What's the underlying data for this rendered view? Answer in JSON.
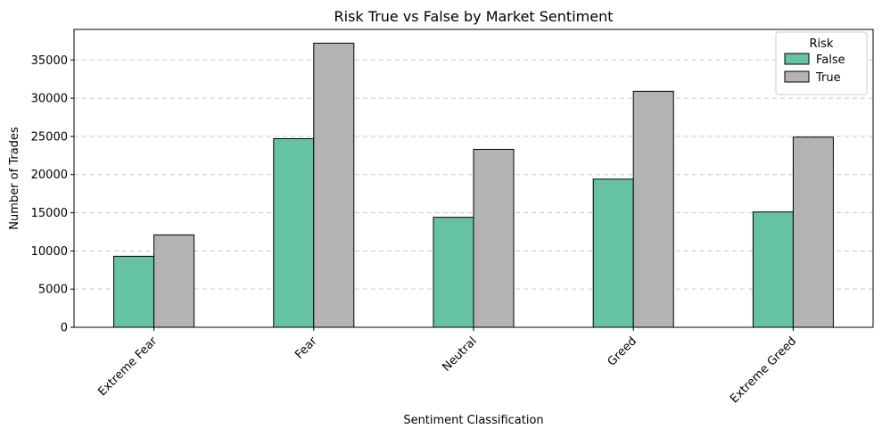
{
  "chart_data": {
    "type": "bar",
    "title": "Risk True vs False by Market Sentiment",
    "xlabel": "Sentiment Classification",
    "ylabel": "Number of Trades",
    "categories": [
      "Extreme Fear",
      "Fear",
      "Neutral",
      "Greed",
      "Extreme Greed"
    ],
    "series": [
      {
        "name": "False",
        "color": "#66c2a5",
        "values": [
          9300,
          24700,
          14400,
          19400,
          15100
        ]
      },
      {
        "name": "True",
        "color": "#b3b3b3",
        "values": [
          12100,
          37200,
          23300,
          30900,
          24900
        ]
      }
    ],
    "ylim": [
      0,
      39000
    ],
    "yticks": [
      0,
      5000,
      10000,
      15000,
      20000,
      25000,
      30000,
      35000
    ],
    "grid": "y-dashed",
    "legend": {
      "title": "Risk",
      "position": "top-right"
    },
    "xtick_rotation": 45
  }
}
